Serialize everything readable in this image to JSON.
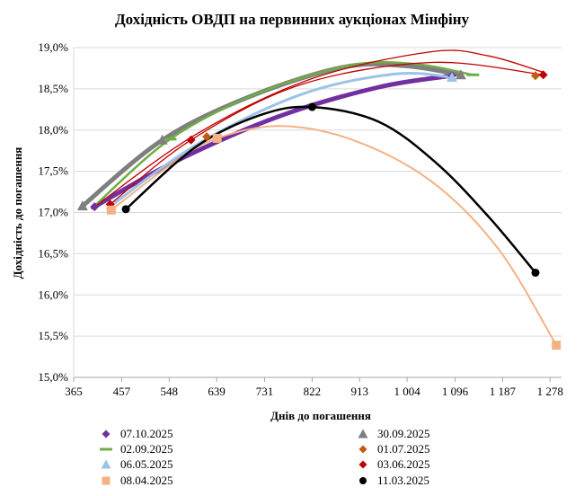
{
  "chart_data": {
    "type": "scatter",
    "title": "Дохідність ОВДП на первинних аукціонах Мінфіну",
    "xlabel": "Днів до погашення",
    "ylabel": "Дохідність до погашення",
    "xlim": [
      365,
      1300
    ],
    "ylim": [
      15.0,
      19.0
    ],
    "x_ticks": [
      365,
      457,
      548,
      639,
      731,
      822,
      913,
      1004,
      1096,
      1187,
      1278
    ],
    "x_tick_labels": [
      "365",
      "457",
      "548",
      "639",
      "731",
      "822",
      "913",
      "1 004",
      "1 096",
      "1 187",
      "1 278"
    ],
    "y_ticks": [
      15.0,
      15.5,
      16.0,
      16.5,
      17.0,
      17.5,
      18.0,
      18.5,
      19.0
    ],
    "y_tick_labels": [
      "15,0%",
      "15,5%",
      "16,0%",
      "16,5%",
      "17,0%",
      "17,5%",
      "18,0%",
      "18,5%",
      "19,0%"
    ],
    "grid": "horizontal",
    "legend_position": "bottom",
    "series": [
      {
        "name": "07.10.2025",
        "marker": "diamond",
        "color": "#7030A0",
        "stroke": 5,
        "points": [
          [
            405,
            17.07
          ],
          [
            1090,
            18.66
          ]
        ],
        "trend": [
          [
            405,
            17.07
          ],
          [
            560,
            17.62
          ],
          [
            760,
            18.17
          ],
          [
            950,
            18.52
          ],
          [
            1090,
            18.66
          ]
        ]
      },
      {
        "name": "30.09.2025",
        "marker": "triangle",
        "color": "#7F7F7F",
        "stroke": 5,
        "points": [
          [
            382,
            17.08
          ],
          [
            535,
            17.88
          ],
          [
            1107,
            18.67
          ]
        ],
        "trend": [
          [
            382,
            17.08
          ],
          [
            535,
            17.88
          ],
          [
            700,
            18.4
          ],
          [
            880,
            18.76
          ],
          [
            1000,
            18.78
          ],
          [
            1107,
            18.67
          ]
        ]
      },
      {
        "name": "02.09.2025",
        "marker": "dash",
        "color": "#70AD47",
        "stroke": 2.5,
        "points": [
          [
            550,
            17.89
          ],
          [
            1130,
            18.67
          ]
        ],
        "trend": [
          [
            400,
            17.05
          ],
          [
            550,
            17.89
          ],
          [
            720,
            18.45
          ],
          [
            900,
            18.79
          ],
          [
            1020,
            18.8
          ],
          [
            1130,
            18.67
          ]
        ]
      },
      {
        "name": "01.07.2025",
        "marker": "diamond",
        "color": "#C55A11",
        "stroke": 1,
        "points": [
          [
            620,
            17.92
          ],
          [
            1250,
            18.66
          ]
        ],
        "trend": []
      },
      {
        "name": "06.05.2025",
        "marker": "triangle",
        "color": "#9DC3E6",
        "stroke": 3,
        "points": [
          [
            1090,
            18.64
          ]
        ],
        "trend": [
          [
            430,
            17.05
          ],
          [
            600,
            17.82
          ],
          [
            800,
            18.43
          ],
          [
            980,
            18.68
          ],
          [
            1090,
            18.64
          ]
        ]
      },
      {
        "name": "03.06.2025",
        "marker": "diamond",
        "color": "#C00000",
        "stroke": 1.3,
        "points": [
          [
            435,
            17.1
          ],
          [
            590,
            17.88
          ],
          [
            1265,
            18.67
          ]
        ],
        "trend": [
          [
            435,
            17.1
          ],
          [
            590,
            17.88
          ],
          [
            800,
            18.55
          ],
          [
            1050,
            18.82
          ],
          [
            1265,
            18.67
          ]
        ],
        "trend2": [
          [
            405,
            17.07
          ],
          [
            600,
            17.95
          ],
          [
            820,
            18.62
          ],
          [
            1050,
            18.95
          ],
          [
            1160,
            18.9
          ],
          [
            1265,
            18.7
          ]
        ]
      },
      {
        "name": "08.04.2025",
        "marker": "square",
        "color": "#F4B183",
        "stroke": 2,
        "points": [
          [
            437,
            17.03
          ],
          [
            640,
            17.9
          ],
          [
            1290,
            15.39
          ]
        ],
        "trend": [
          [
            437,
            17.03
          ],
          [
            560,
            17.62
          ],
          [
            640,
            17.9
          ],
          [
            760,
            18.05
          ],
          [
            900,
            17.88
          ],
          [
            1050,
            17.38
          ],
          [
            1180,
            16.55
          ],
          [
            1290,
            15.39
          ]
        ]
      },
      {
        "name": "11.03.2025",
        "marker": "circle",
        "color": "#000000",
        "stroke": 2.5,
        "points": [
          [
            465,
            17.04
          ],
          [
            822,
            18.28
          ],
          [
            1250,
            16.27
          ]
        ],
        "trend": [
          [
            465,
            17.04
          ],
          [
            600,
            17.8
          ],
          [
            722,
            18.18
          ],
          [
            822,
            18.28
          ],
          [
            950,
            18.1
          ],
          [
            1060,
            17.6
          ],
          [
            1160,
            16.95
          ],
          [
            1250,
            16.27
          ]
        ]
      }
    ],
    "legend": [
      [
        "07.10.2025",
        "30.09.2025"
      ],
      [
        "02.09.2025",
        "01.07.2025"
      ],
      [
        "06.05.2025",
        "03.06.2025"
      ],
      [
        "08.04.2025",
        "11.03.2025"
      ]
    ]
  }
}
